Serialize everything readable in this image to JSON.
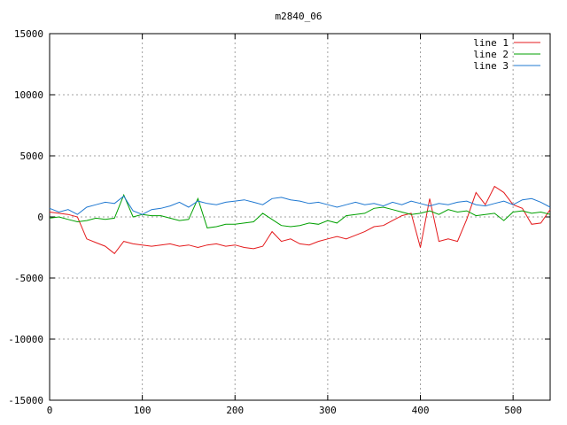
{
  "chart_data": {
    "type": "line",
    "title": "m2840_06",
    "xlabel": "",
    "ylabel": "",
    "xlim": [
      0,
      540
    ],
    "ylim": [
      -15000,
      15000
    ],
    "xticks": [
      0,
      100,
      200,
      300,
      400,
      500
    ],
    "yticks": [
      -15000,
      -10000,
      -5000,
      0,
      5000,
      10000,
      15000
    ],
    "grid": true,
    "legend_position": "top-right",
    "x_step": 10,
    "series": [
      {
        "name": "line 1",
        "color": "#e41a1c",
        "values": [
          400,
          300,
          200,
          0,
          -1800,
          -2100,
          -2400,
          -3000,
          -2000,
          -2200,
          -2300,
          -2400,
          -2300,
          -2200,
          -2400,
          -2300,
          -2500,
          -2300,
          -2200,
          -2400,
          -2300,
          -2500,
          -2600,
          -2400,
          -1200,
          -2000,
          -1800,
          -2200,
          -2300,
          -2000,
          -1800,
          -1600,
          -1800,
          -1500,
          -1200,
          -800,
          -700,
          -300,
          100,
          300,
          -2500,
          1500,
          -2000,
          -1800,
          -2000,
          -200,
          2000,
          1000,
          2500,
          2000,
          1000,
          700,
          -600,
          -500,
          600
        ]
      },
      {
        "name": "line 2",
        "color": "#00a000",
        "values": [
          -100,
          0,
          -200,
          -400,
          -300,
          -100,
          -200,
          -100,
          1800,
          0,
          200,
          100,
          100,
          -100,
          -300,
          -200,
          1500,
          -900,
          -800,
          -600,
          -600,
          -500,
          -400,
          300,
          -200,
          -700,
          -800,
          -700,
          -500,
          -600,
          -300,
          -500,
          100,
          200,
          300,
          700,
          800,
          600,
          400,
          200,
          300,
          500,
          200,
          600,
          400,
          500,
          100,
          200,
          300,
          -300,
          400,
          500,
          300,
          400,
          200
        ]
      },
      {
        "name": "line 3",
        "color": "#1f78d1",
        "values": [
          700,
          400,
          600,
          200,
          800,
          1000,
          1200,
          1100,
          1700,
          500,
          200,
          600,
          700,
          900,
          1200,
          800,
          1300,
          1100,
          1000,
          1200,
          1300,
          1400,
          1200,
          1000,
          1500,
          1600,
          1400,
          1300,
          1100,
          1200,
          1000,
          800,
          1000,
          1200,
          1000,
          1100,
          900,
          1200,
          1000,
          1300,
          1100,
          900,
          1100,
          1000,
          1200,
          1300,
          1000,
          900,
          1100,
          1300,
          1000,
          1400,
          1500,
          1200,
          800
        ]
      }
    ]
  }
}
